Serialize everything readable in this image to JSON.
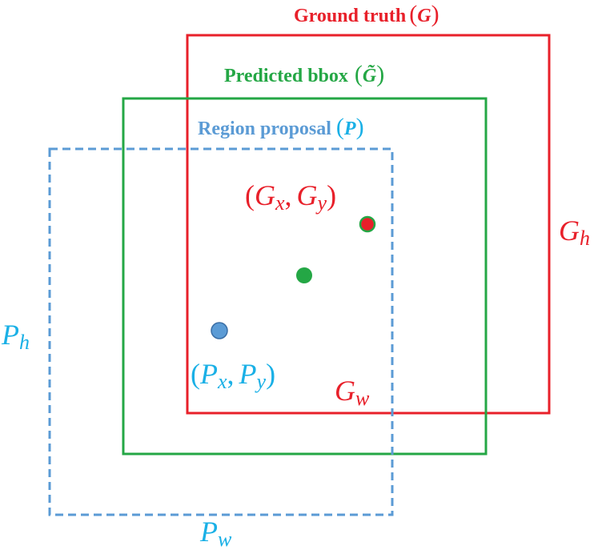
{
  "colors": {
    "ground_truth": "#e8202a",
    "predicted": "#24a745",
    "proposal_box": "#5b9bd5",
    "proposal_math": "#1ab0e6"
  },
  "ground_truth": {
    "label": "Ground truth",
    "symbol": "G",
    "open": "(",
    "close": ")"
  },
  "predicted": {
    "label": "Predicted bbox",
    "symbol": "G̃",
    "open": "(",
    "close": ")"
  },
  "proposal": {
    "label": "Region proposal",
    "symbol": "P",
    "open": "(",
    "close": ")"
  },
  "gt_center": {
    "open": "(",
    "base1": "G",
    "sub1": "x",
    "sep": ",",
    "base2": "G",
    "sub2": "y",
    "close": ")"
  },
  "p_center": {
    "open": "(",
    "base1": "P",
    "sub1": "x",
    "sep": ",",
    "base2": "P",
    "sub2": "y",
    "close": ")"
  },
  "g_h": {
    "base": "G",
    "sub": "h"
  },
  "g_w": {
    "base": "G",
    "sub": "w"
  },
  "p_h": {
    "base": "P",
    "sub": "h"
  },
  "p_w": {
    "base": "P",
    "sub": "w"
  }
}
